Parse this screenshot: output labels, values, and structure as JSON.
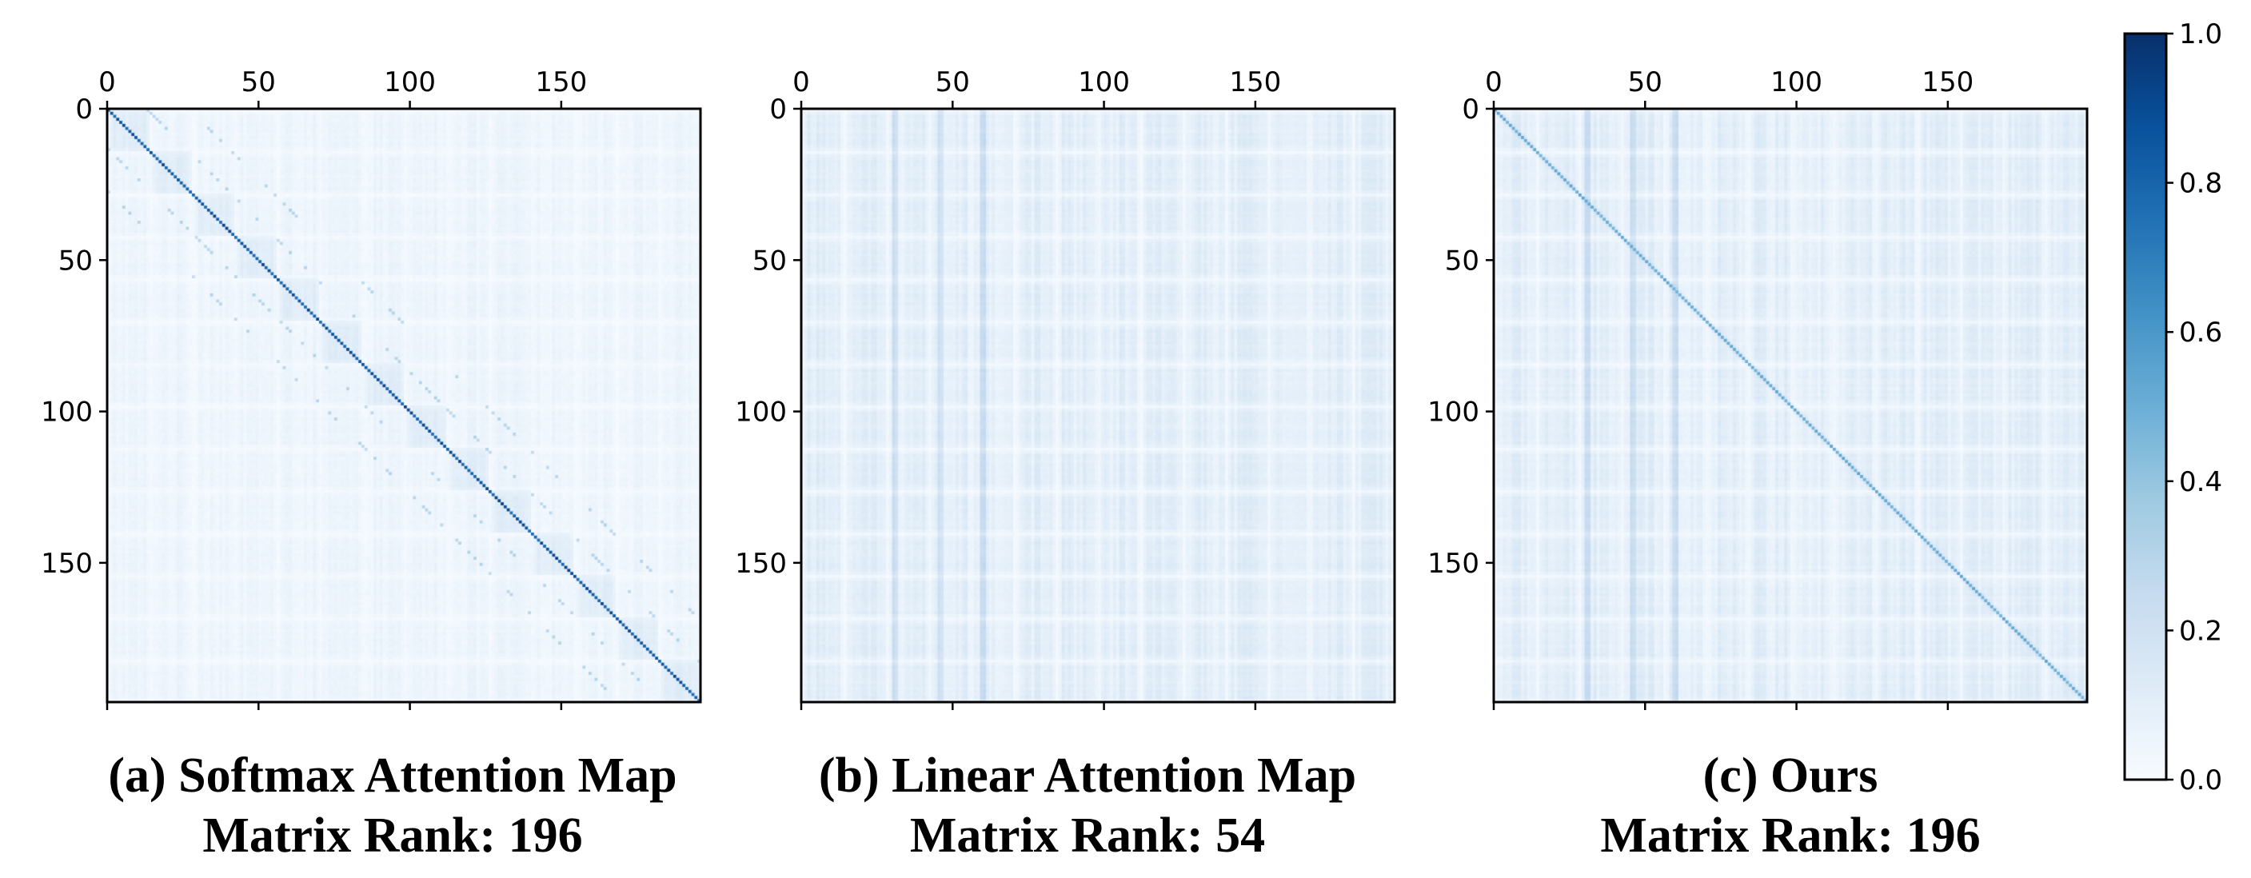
{
  "chart_data": [
    {
      "type": "heatmap",
      "caption": "(a) Softmax Attention Map",
      "subcaption": "Matrix Rank: 196",
      "matrix_size": 196,
      "xlim": [
        0,
        196
      ],
      "ylim": [
        0,
        196
      ],
      "x_ticks": [
        "0",
        "50",
        "100",
        "150"
      ],
      "y_ticks": [
        "0",
        "50",
        "100",
        "150"
      ],
      "diagonal_intensity": 0.95,
      "background_intensity": 0.05,
      "off_diagonal_bands": [
        -27,
        -13,
        13,
        27
      ]
    },
    {
      "type": "heatmap",
      "caption": "(b) Linear Attention Map",
      "subcaption": "Matrix Rank: 54",
      "matrix_size": 196,
      "xlim": [
        0,
        196
      ],
      "ylim": [
        0,
        196
      ],
      "x_ticks": [
        "0",
        "50",
        "100",
        "150"
      ],
      "y_ticks": [
        "0",
        "50",
        "100",
        "150"
      ],
      "diagonal_intensity": 0.0,
      "background_intensity": 0.1,
      "strong_columns": [
        30,
        45,
        59
      ]
    },
    {
      "type": "heatmap",
      "caption": "(c) Ours",
      "subcaption": "Matrix Rank: 196",
      "matrix_size": 196,
      "xlim": [
        0,
        196
      ],
      "ylim": [
        0,
        196
      ],
      "x_ticks": [
        "0",
        "50",
        "100",
        "150"
      ],
      "y_ticks": [
        "0",
        "50",
        "100",
        "150"
      ],
      "diagonal_intensity": 0.55,
      "background_intensity": 0.1,
      "strong_columns": [
        30,
        45,
        59
      ]
    }
  ],
  "colorbar": {
    "colormap": "Blues",
    "range": [
      0.0,
      1.0
    ],
    "ticks": [
      "0.0",
      "0.2",
      "0.4",
      "0.6",
      "0.8",
      "1.0"
    ]
  },
  "colors": {
    "low": "#f7fbff",
    "high": "#08306b"
  }
}
